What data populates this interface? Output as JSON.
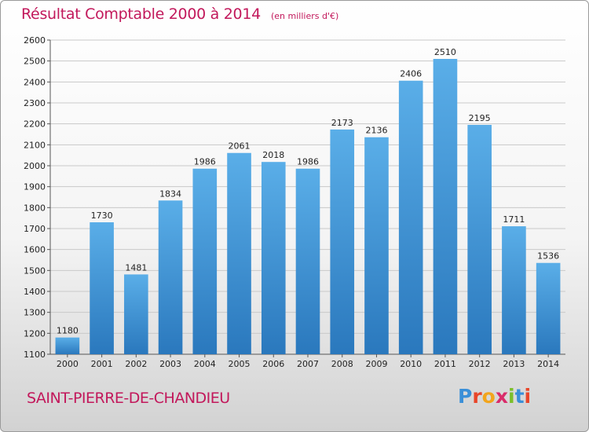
{
  "chart_data": {
    "type": "bar",
    "title": "Résultat Comptable 2000 à 2014",
    "unit_note": "(en milliers d'€)",
    "categories": [
      "2000",
      "2001",
      "2002",
      "2003",
      "2004",
      "2005",
      "2006",
      "2007",
      "2008",
      "2009",
      "2010",
      "2011",
      "2012",
      "2013",
      "2014"
    ],
    "values": [
      1180,
      1730,
      1481,
      1834,
      1986,
      2061,
      2018,
      1986,
      2173,
      2136,
      2406,
      2510,
      2195,
      1711,
      1536
    ],
    "ylim": [
      1100,
      2600
    ],
    "yticks": [
      1100,
      1200,
      1300,
      1400,
      1500,
      1600,
      1700,
      1800,
      1900,
      2000,
      2100,
      2200,
      2300,
      2400,
      2500,
      2600
    ],
    "grid": true,
    "bar_color_top": "#5aaee8",
    "bar_color_bottom": "#2a78bd"
  },
  "footer": {
    "city": "SAINT-PIERRE-DE-CHANDIEU"
  },
  "logo": {
    "letters": [
      {
        "ch": "P",
        "color": "#3a8fd8"
      },
      {
        "ch": "r",
        "color": "#e8462a"
      },
      {
        "ch": "o",
        "color": "#f2a51c"
      },
      {
        "ch": "x",
        "color": "#d92c6a"
      },
      {
        "ch": "i",
        "color": "#7bbf2a"
      },
      {
        "ch": "t",
        "color": "#3a8fd8"
      },
      {
        "ch": "i",
        "color": "#e8462a"
      }
    ]
  }
}
